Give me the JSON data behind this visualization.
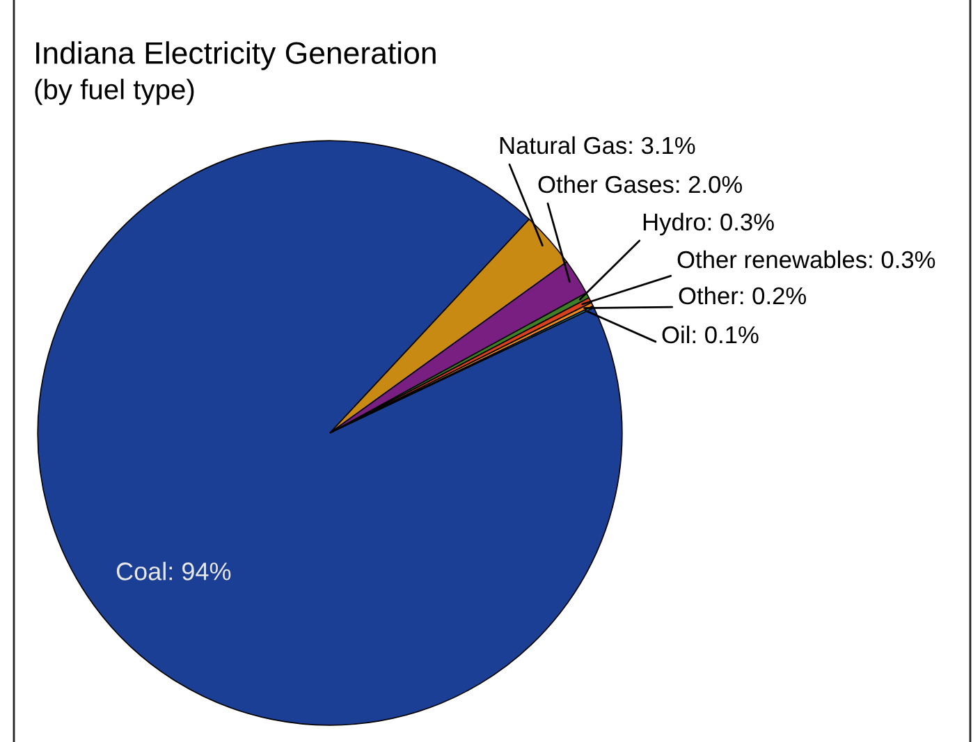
{
  "chart_data": {
    "type": "pie",
    "title": "Indiana Electricity Generation",
    "subtitle": "(by fuel type)",
    "categories": [
      "Coal: 94%",
      "Natural Gas: 3.1%",
      "Other Gases: 2.0%",
      "Hydro: 0.3%",
      "Other renewables: 0.3%",
      "Other: 0.2%",
      "Oil: 0.1%"
    ],
    "values": [
      94,
      3.1,
      2.0,
      0.3,
      0.3,
      0.2,
      0.1
    ],
    "colors": [
      "#1c3f96",
      "#c98a14",
      "#7a1f82",
      "#3f7f2a",
      "#d9401e",
      "#f08a1c",
      "#12a3a8"
    ]
  }
}
